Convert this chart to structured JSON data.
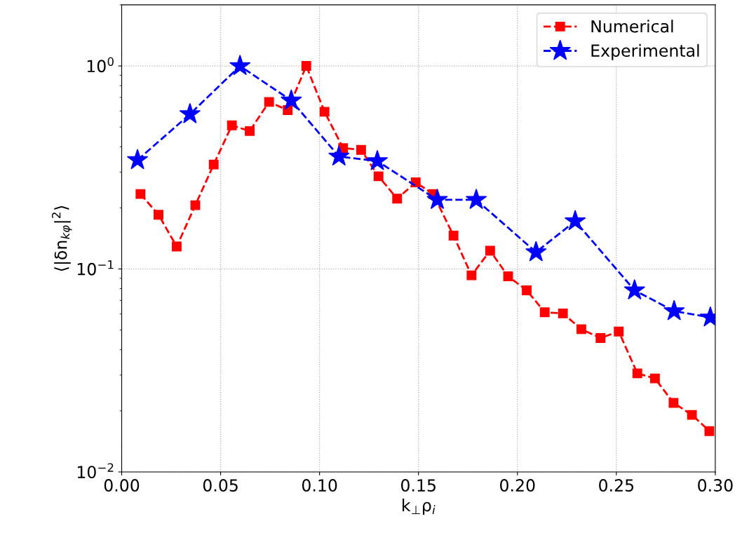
{
  "chart_data": {
    "type": "line",
    "xlabel": "k$_{⊥}$ρ$_{i}$",
    "ylabel": "⟨|δn$_{kφ}$|$^{2}$⟩",
    "log": "y",
    "grid": true,
    "legend": "top right",
    "line_style": "dashed",
    "xlim": [
      0,
      0.3
    ],
    "xticks": [
      {
        "value": 0,
        "label": "0.00"
      },
      {
        "value": 0.05,
        "label": "0.05"
      },
      {
        "value": 0.1,
        "label": "0.10"
      },
      {
        "value": 0.15,
        "label": "0.15"
      },
      {
        "value": 0.2,
        "label": "0.20"
      },
      {
        "value": 0.25,
        "label": "0.25"
      },
      {
        "value": 0.3,
        "label": "0.30"
      }
    ],
    "ylim": [
      0.01,
      2
    ],
    "yticks": [
      {
        "value": 0.01,
        "label": "10$^{−2}$"
      },
      {
        "value": 0.1,
        "label": "10$^{−1}$"
      },
      {
        "value": 1,
        "label": "10$^{0}$"
      }
    ],
    "series": [
      {
        "name": "Numerical",
        "color": "#ff0000",
        "marker": "square",
        "x": [
          0.0095,
          0.0186,
          0.0278,
          0.0372,
          0.0465,
          0.0557,
          0.0647,
          0.0745,
          0.0839,
          0.0933,
          0.1025,
          0.1119,
          0.121,
          0.1298,
          0.1392,
          0.1486,
          0.1574,
          0.1677,
          0.1768,
          0.1862,
          0.1953,
          0.2047,
          0.2138,
          0.223,
          0.2323,
          0.242,
          0.2512,
          0.2606,
          0.2695,
          0.2789,
          0.2882,
          0.297
        ],
        "values": [
          0.234,
          0.185,
          0.129,
          0.206,
          0.327,
          0.51,
          0.478,
          0.665,
          0.606,
          1.0,
          0.595,
          0.394,
          0.386,
          0.286,
          0.222,
          0.267,
          0.234,
          0.146,
          0.093,
          0.123,
          0.092,
          0.0785,
          0.0612,
          0.0604,
          0.0505,
          0.0457,
          0.0492,
          0.0306,
          0.0289,
          0.0219,
          0.0191,
          0.0159
        ]
      },
      {
        "name": "Experimental",
        "color": "#0000ff",
        "marker": "star",
        "x": [
          0.008,
          0.0345,
          0.0598,
          0.0857,
          0.1098,
          0.1292,
          0.1595,
          0.1792,
          0.2094,
          0.2292,
          0.2592,
          0.2792,
          0.2975
        ],
        "values": [
          0.344,
          0.579,
          1.0,
          0.676,
          0.358,
          0.34,
          0.219,
          0.219,
          0.121,
          0.172,
          0.0785,
          0.062,
          0.0577
        ]
      }
    ]
  }
}
